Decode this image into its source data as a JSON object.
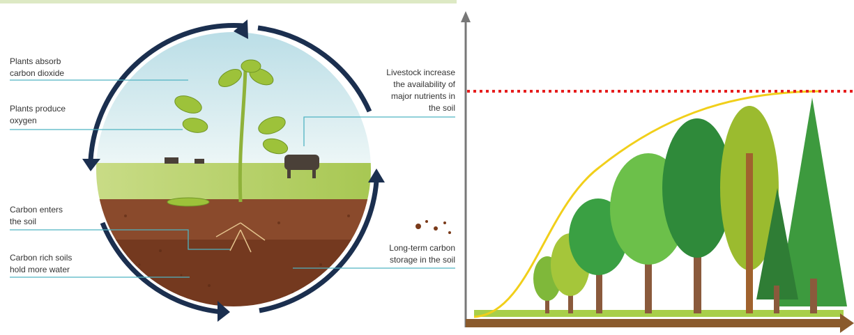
{
  "labels": {
    "absorb": [
      "Plants absorb",
      "carbon dioxide"
    ],
    "oxygen": [
      "Plants produce",
      "oxygen"
    ],
    "enters": [
      "Carbon enters",
      "the soil"
    ],
    "water": [
      "Carbon rich soils",
      "hold more water"
    ],
    "livestock": [
      "Livestock increase",
      "the availability of",
      "major nutrients in",
      "the soil"
    ],
    "storage": [
      "Long-term carbon",
      "storage in the soil"
    ]
  }
}
